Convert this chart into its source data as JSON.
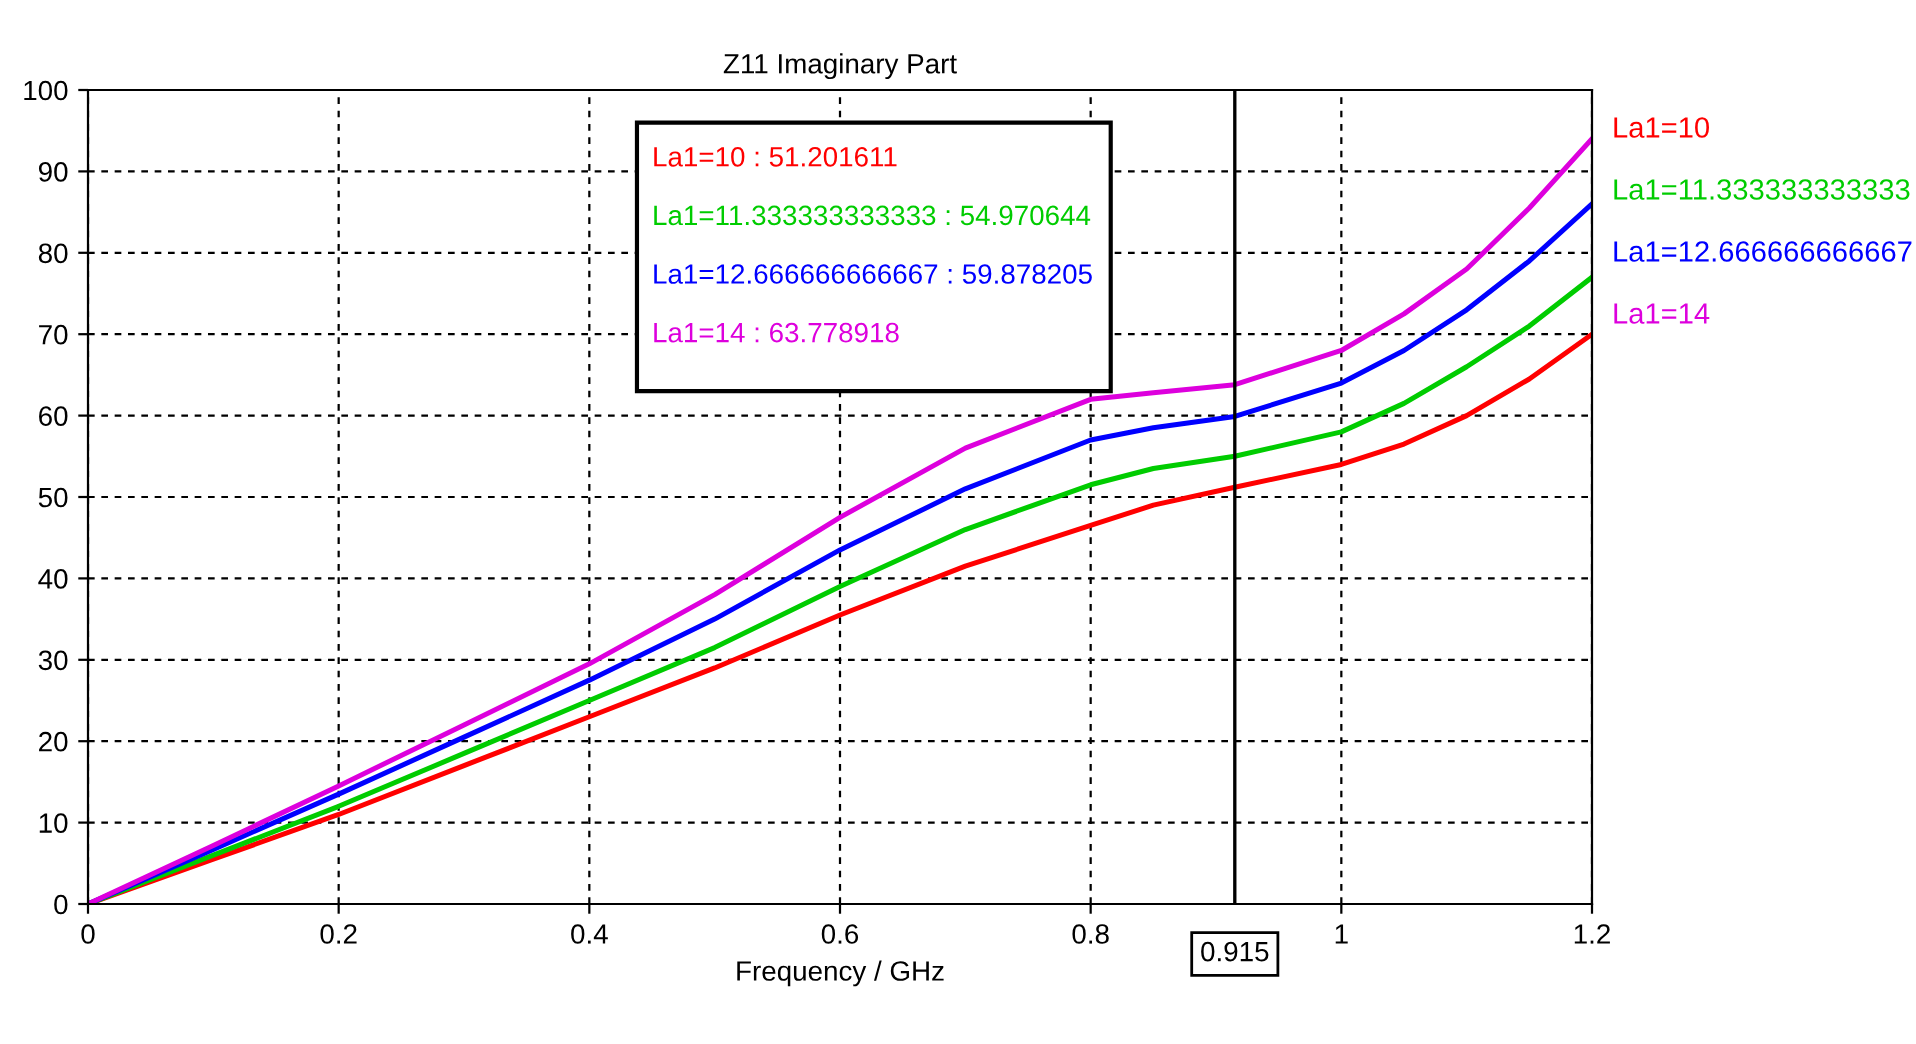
{
  "chart_data": {
    "type": "line",
    "title": "Z11 Imaginary Part",
    "xlabel": "Frequency / GHz",
    "x": [
      0,
      0.1,
      0.2,
      0.3,
      0.4,
      0.5,
      0.6,
      0.7,
      0.8,
      0.85,
      0.915,
      1,
      1.05,
      1.1,
      1.15,
      1.2
    ],
    "series": [
      {
        "name": "La1=10",
        "color": "#ff0000",
        "values": [
          0,
          5.5,
          11,
          17,
          23,
          29,
          35.5,
          41.5,
          46.5,
          49,
          51.2,
          54,
          56.5,
          60,
          64.5,
          70
        ]
      },
      {
        "name": "La1=11.333333333333",
        "color": "#00cc00",
        "values": [
          0,
          6,
          12,
          18.5,
          25,
          31.5,
          39,
          46,
          51.5,
          53.5,
          55,
          58,
          61.5,
          66,
          71,
          77
        ]
      },
      {
        "name": "La1=12.666666666667",
        "color": "#0000ff",
        "values": [
          0,
          6.7,
          13.5,
          20.5,
          27.5,
          35,
          43.5,
          51,
          57,
          58.5,
          59.9,
          64,
          68,
          73,
          79,
          86
        ]
      },
      {
        "name": "La1=14",
        "color": "#dd00dd",
        "values": [
          0,
          7.2,
          14.5,
          22,
          29.5,
          38,
          47.5,
          56,
          62,
          62.8,
          63.8,
          68,
          72.5,
          78,
          85.5,
          94
        ]
      }
    ],
    "annotations": [
      "La1=10 : 51.201611",
      "La1=11.333333333333 : 54.970644",
      "La1=12.666666666667 : 59.878205",
      "La1=14 : 63.778918"
    ],
    "ref_lines": [
      {
        "axis": "x",
        "value": 0.915,
        "label": "0.915",
        "color": "#000000"
      }
    ],
    "xlim": [
      0,
      1.2
    ],
    "ylim": [
      0,
      100
    ],
    "xticks": [
      0,
      0.2,
      0.4,
      0.6,
      0.8,
      1,
      1.2
    ],
    "yticks": [
      0,
      10,
      20,
      30,
      40,
      50,
      60,
      70,
      80,
      90,
      100
    ],
    "grid": true,
    "legend": "right",
    "line_style": "solid",
    "marker": "none"
  }
}
